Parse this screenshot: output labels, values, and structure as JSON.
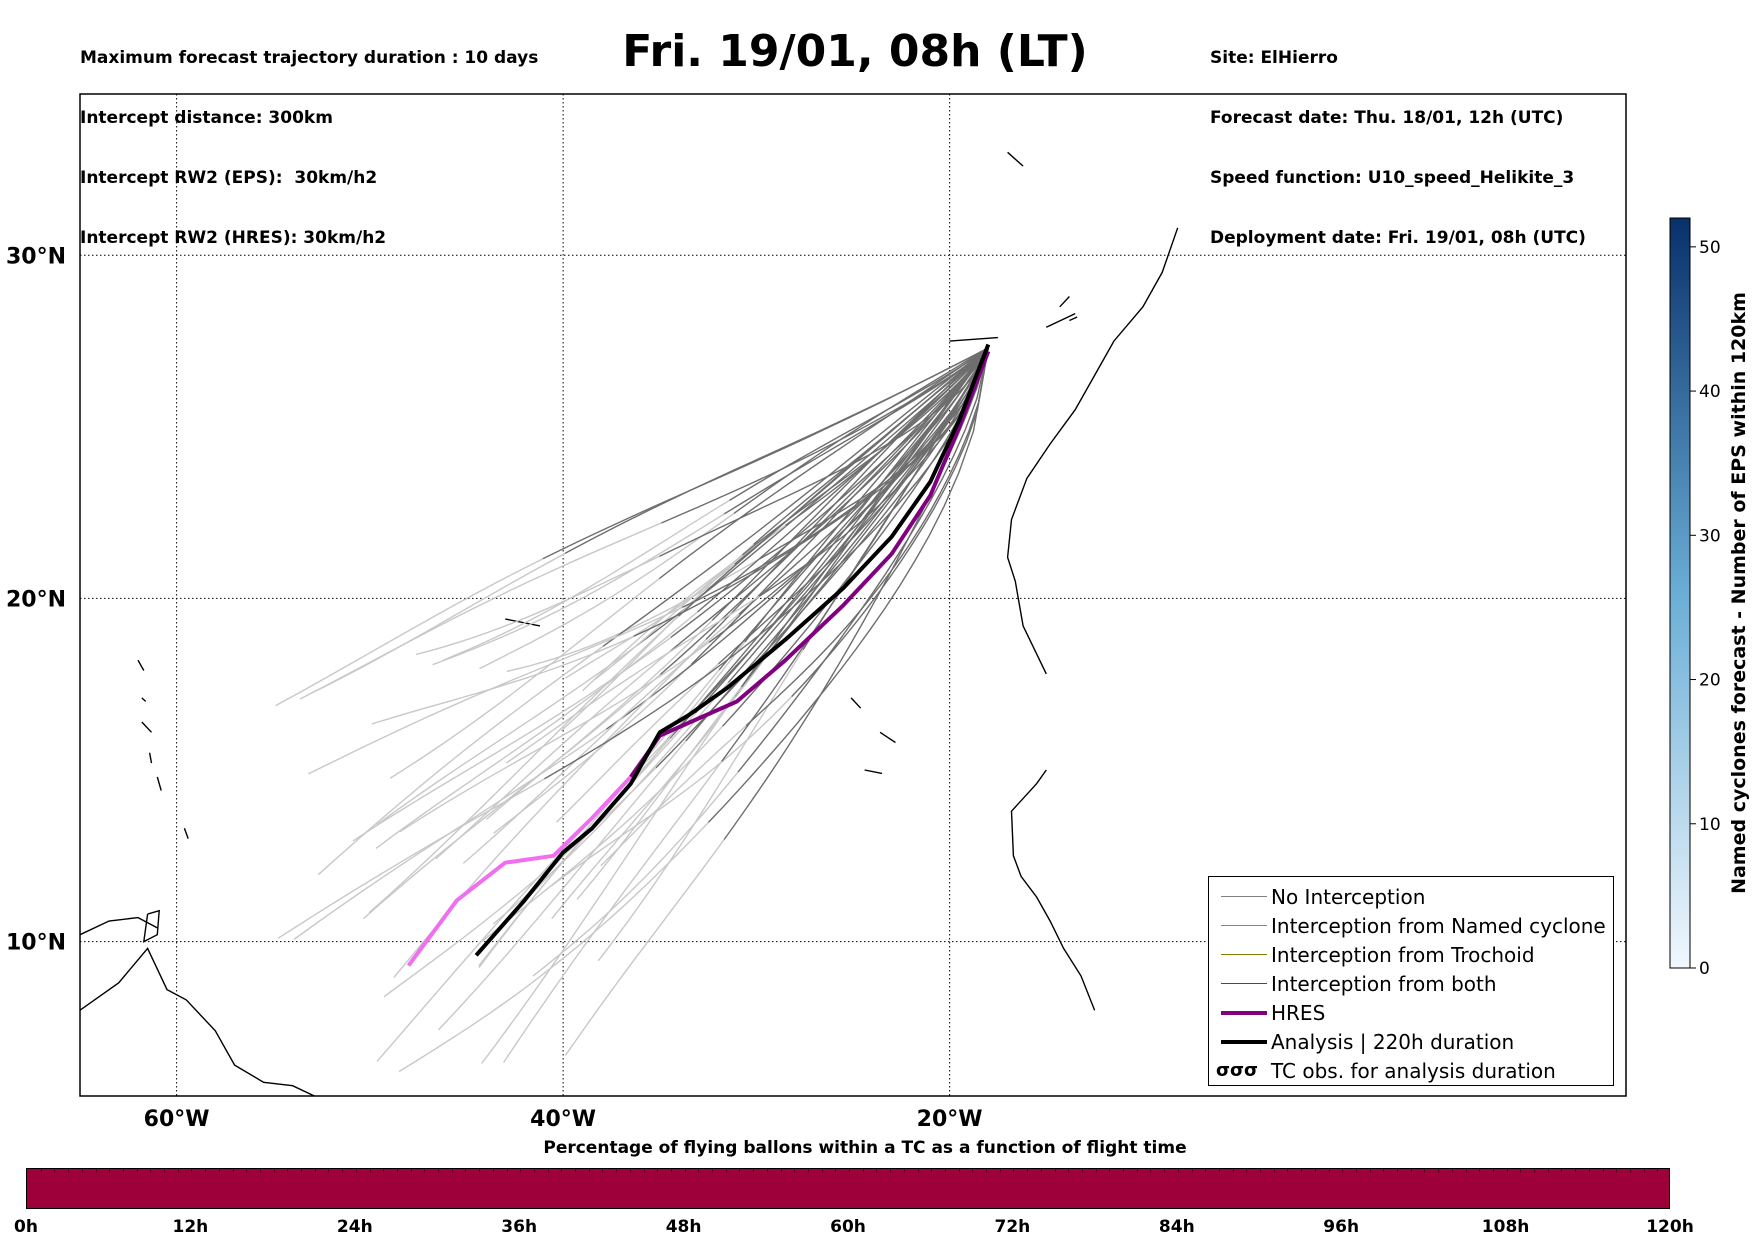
{
  "header_left": [
    "Maximum forecast trajectory duration : 10 days",
    "Intercept distance: 300km",
    "Intercept RW2 (EPS):  30km/h2",
    "Intercept RW2 (HRES): 30km/h2"
  ],
  "header_right": [
    "Site: ElHierro",
    "Forecast date: Thu. 18/01, 12h (UTC)",
    "Speed function: U10_speed_Helikite_3",
    "Deployment date: Fri. 19/01, 08h (UTC)"
  ],
  "title": "Fri. 19/01, 08h (LT)",
  "map": {
    "lon_range": [
      -65,
      15
    ],
    "lat_range": [
      5.5,
      34.7
    ],
    "lon_ticks": [
      {
        "value": -60,
        "label": "60°W"
      },
      {
        "value": -40,
        "label": "40°W"
      },
      {
        "value": -20,
        "label": "20°W"
      }
    ],
    "lat_ticks": [
      {
        "value": 30,
        "label": "30°N"
      },
      {
        "value": 20,
        "label": "20°N"
      },
      {
        "value": 10,
        "label": "10°N"
      }
    ]
  },
  "legend": [
    {
      "label": "No Interception",
      "color": "#808080",
      "width": 1.5
    },
    {
      "label": "Interception from Named cyclone",
      "color": "#ff5a1e",
      "width": 1.5
    },
    {
      "label": "Interception from Trochoid",
      "color": "#808000",
      "width": 1.5
    },
    {
      "label": "Interception from both",
      "color": "#008000",
      "width": 1.5
    },
    {
      "label": "HRES",
      "color": "#800080",
      "width": 4
    },
    {
      "label": "Analysis | 220h duration",
      "color": "#000000",
      "width": 4
    },
    {
      "label": "TC obs. for analysis duration",
      "symbol": "σσσ"
    }
  ],
  "colorbar": {
    "label": "Named cyclones forecast - Number of EPS within 120km",
    "ticks": [
      "0",
      "10",
      "20",
      "30",
      "40",
      "50"
    ],
    "max": 52
  },
  "time_bar": {
    "title": "Percentage of flying ballons within a TC as a function of flight time",
    "ticks": [
      "0h",
      "12h",
      "24h",
      "36h",
      "48h",
      "60h",
      "72h",
      "84h",
      "96h",
      "108h",
      "120h"
    ],
    "color": "#9e003a"
  },
  "tracks": {
    "hres": [
      [
        -18.0,
        27.2
      ],
      [
        -19.5,
        25.0
      ],
      [
        -21.0,
        23.0
      ],
      [
        -23.0,
        21.3
      ],
      [
        -25.5,
        19.8
      ],
      [
        -28.5,
        18.2
      ],
      [
        -31.0,
        17.0
      ],
      [
        -33.0,
        16.5
      ],
      [
        -35.0,
        16.0
      ],
      [
        -36.5,
        14.8
      ],
      [
        -38.5,
        13.6
      ],
      [
        -40.5,
        12.5
      ],
      [
        -43.0,
        12.3
      ],
      [
        -45.5,
        11.2
      ],
      [
        -48.0,
        9.3
      ]
    ],
    "analysis": [
      [
        -18.0,
        27.4
      ],
      [
        -19.5,
        25.2
      ],
      [
        -21.0,
        23.4
      ],
      [
        -23.0,
        21.8
      ],
      [
        -25.5,
        20.3
      ],
      [
        -28.5,
        18.8
      ],
      [
        -31.5,
        17.4
      ],
      [
        -33.5,
        16.6
      ],
      [
        -35.0,
        16.1
      ],
      [
        -36.5,
        14.6
      ],
      [
        -38.5,
        13.3
      ],
      [
        -40.0,
        12.6
      ],
      [
        -42.0,
        11.2
      ],
      [
        -44.5,
        9.6
      ]
    ]
  }
}
